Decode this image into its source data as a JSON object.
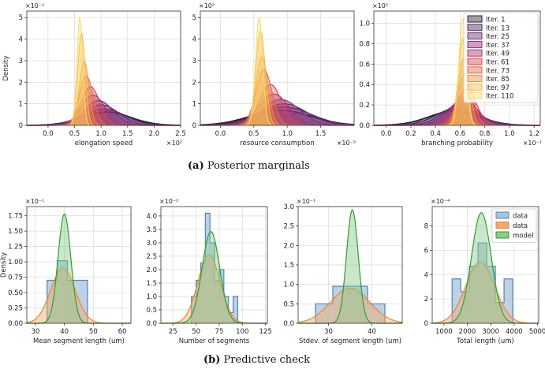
{
  "captions": {
    "a_tag": "(a)",
    "a_text": "Posterior marginals",
    "b_tag": "(b)",
    "b_text": "Predictive check"
  },
  "colors": {
    "iterations": [
      "#2b2338",
      "#4b2a5e",
      "#6d2e78",
      "#8e2d7d",
      "#b13370",
      "#cf4a5e",
      "#e4674c",
      "#f08f3f",
      "#f6b84b",
      "#f9dc6a"
    ],
    "data_fill": "#a9c2dd",
    "data_edge": "#4f86b8",
    "data2_fill": "#f4a86a",
    "data2_edge": "#f0822e",
    "model_fill": "#8cc98c",
    "model_edge": "#2ca02c",
    "grid": "#d9d9d9",
    "axis": "#333333"
  },
  "chart_data": [
    {
      "type": "area",
      "panel": "a1",
      "xlabel": "elongation speed",
      "ylabel": "Density",
      "xscale": "×10²",
      "yscale": "×10⁻²",
      "xlim": [
        -0.4,
        2.5
      ],
      "ylim": [
        0,
        5.3
      ],
      "xticks": [
        0.0,
        0.5,
        1.0,
        1.5,
        2.0,
        2.5
      ],
      "yticks": [
        0,
        1,
        2,
        3,
        4,
        5
      ],
      "grid": true,
      "series": [
        {
          "name": "Iter. 1",
          "mu": 1.1,
          "sd": 0.45,
          "peak": 0.62,
          "w": 1.9
        },
        {
          "name": "Iter. 13",
          "mu": 1.05,
          "sd": 0.4,
          "peak": 0.75,
          "w": 1.7
        },
        {
          "name": "Iter. 25",
          "mu": 1.0,
          "sd": 0.33,
          "peak": 0.95,
          "w": 1.5
        },
        {
          "name": "Iter. 37",
          "mu": 0.95,
          "sd": 0.27,
          "peak": 1.15,
          "w": 1.4
        },
        {
          "name": "Iter. 49",
          "mu": 0.85,
          "sd": 0.22,
          "peak": 1.4,
          "w": 1.3
        },
        {
          "name": "Iter. 61",
          "mu": 0.8,
          "sd": 0.17,
          "peak": 1.8,
          "w": 1.2
        },
        {
          "name": "Iter. 73",
          "mu": 0.72,
          "sd": 0.13,
          "peak": 2.3,
          "w": 1.1
        },
        {
          "name": "Iter. 85",
          "mu": 0.68,
          "sd": 0.09,
          "peak": 3.0,
          "w": 1.0
        },
        {
          "name": "Iter. 97",
          "mu": 0.63,
          "sd": 0.07,
          "peak": 4.3,
          "w": 1.0
        },
        {
          "name": "Iter. 110",
          "mu": 0.6,
          "sd": 0.055,
          "peak": 5.05,
          "w": 1.0
        }
      ]
    },
    {
      "type": "area",
      "panel": "a2",
      "xlabel": "resource consumption",
      "ylabel": "",
      "xscale": "×10⁻³",
      "yscale": "×10³",
      "xlim": [
        -0.3,
        2.0
      ],
      "ylim": [
        0,
        5.3
      ],
      "xticks": [
        0.0,
        0.5,
        1.0,
        1.5
      ],
      "yticks": [
        0,
        1,
        2,
        3,
        4,
        5
      ],
      "grid": true,
      "series": [
        {
          "name": "Iter. 1",
          "mu": 0.9,
          "sd": 0.45,
          "peak": 0.7,
          "w": 1.9
        },
        {
          "name": "Iter. 13",
          "mu": 0.95,
          "sd": 0.4,
          "peak": 0.85,
          "w": 1.6
        },
        {
          "name": "Iter. 25",
          "mu": 0.95,
          "sd": 0.34,
          "peak": 1.0,
          "w": 1.5
        },
        {
          "name": "Iter. 37",
          "mu": 0.9,
          "sd": 0.28,
          "peak": 1.2,
          "w": 1.3
        },
        {
          "name": "Iter. 49",
          "mu": 0.8,
          "sd": 0.22,
          "peak": 1.45,
          "w": 1.3
        },
        {
          "name": "Iter. 61",
          "mu": 0.75,
          "sd": 0.16,
          "peak": 1.9,
          "w": 1.2
        },
        {
          "name": "Iter. 73",
          "mu": 0.65,
          "sd": 0.12,
          "peak": 2.6,
          "w": 1.1
        },
        {
          "name": "Iter. 85",
          "mu": 0.62,
          "sd": 0.09,
          "peak": 3.2,
          "w": 1.0
        },
        {
          "name": "Iter. 97",
          "mu": 0.6,
          "sd": 0.07,
          "peak": 4.4,
          "w": 1.0
        },
        {
          "name": "Iter. 110",
          "mu": 0.58,
          "sd": 0.055,
          "peak": 5.0,
          "w": 1.0
        }
      ]
    },
    {
      "type": "area",
      "panel": "a3",
      "xlabel": "branching probability",
      "ylabel": "",
      "xscale": "×10⁻¹",
      "yscale": "×10²",
      "xlim": [
        -0.1,
        1.25
      ],
      "ylim": [
        0,
        1.12
      ],
      "xticks": [
        0.0,
        0.2,
        0.4,
        0.6,
        0.8,
        1.0,
        1.2
      ],
      "yticks": [
        0.0,
        0.2,
        0.4,
        0.6,
        0.8,
        1.0
      ],
      "grid": true,
      "legend": "top-right",
      "series": [
        {
          "name": "Iter. 1",
          "mu": 0.55,
          "sd": 0.2,
          "peak": 0.14,
          "w": 1.9
        },
        {
          "name": "Iter. 13",
          "mu": 0.58,
          "sd": 0.17,
          "peak": 0.17,
          "w": 1.6
        },
        {
          "name": "Iter. 25",
          "mu": 0.6,
          "sd": 0.14,
          "peak": 0.2,
          "w": 1.5
        },
        {
          "name": "Iter. 37",
          "mu": 0.62,
          "sd": 0.12,
          "peak": 0.24,
          "w": 1.3
        },
        {
          "name": "Iter. 49",
          "mu": 0.63,
          "sd": 0.1,
          "peak": 0.28,
          "w": 1.3
        },
        {
          "name": "Iter. 61",
          "mu": 0.65,
          "sd": 0.08,
          "peak": 0.36,
          "w": 1.2
        },
        {
          "name": "Iter. 73",
          "mu": 0.64,
          "sd": 0.06,
          "peak": 0.5,
          "w": 1.1
        },
        {
          "name": "Iter. 85",
          "mu": 0.63,
          "sd": 0.045,
          "peak": 0.66,
          "w": 1.0
        },
        {
          "name": "Iter. 97",
          "mu": 0.62,
          "sd": 0.035,
          "peak": 0.85,
          "w": 1.0
        },
        {
          "name": "Iter. 110",
          "mu": 0.62,
          "sd": 0.03,
          "peak": 1.05,
          "w": 1.0
        }
      ]
    },
    {
      "type": "bar",
      "panel": "b1",
      "xlabel": "Mean segment length (um)",
      "ylabel": "Density",
      "yscale": "×10⁻¹",
      "xlim": [
        27,
        63
      ],
      "ylim": [
        0,
        1.9
      ],
      "xticks": [
        30,
        40,
        50,
        60
      ],
      "yticks": [
        0.0,
        0.25,
        0.5,
        0.75,
        1.0,
        1.25,
        1.5,
        1.75
      ],
      "ytick_labels": [
        "0.00",
        "0.25",
        "0.50",
        "0.75",
        "1.00",
        "1.25",
        "1.50",
        "1.75"
      ],
      "grid": true,
      "hist": {
        "edges": [
          34,
          37.5,
          41,
          44.5,
          48
        ],
        "values": [
          0.7,
          1.02,
          0.7,
          0.7
        ]
      },
      "data_kde": {
        "mu": 39.5,
        "sd": 4.2,
        "peak": 0.9
      },
      "model_kde": {
        "mu": 40,
        "sd": 2.2,
        "peak": 1.78
      }
    },
    {
      "type": "bar",
      "panel": "b2",
      "xlabel": "Number of segments",
      "ylabel": "",
      "yscale": "×10⁻²",
      "xlim": [
        12,
        127
      ],
      "ylim": [
        0,
        4.35
      ],
      "xticks": [
        25,
        50,
        75,
        100,
        125
      ],
      "yticks": [
        0.0,
        0.5,
        1.0,
        1.5,
        2.0,
        2.5,
        3.0,
        3.5,
        4.0
      ],
      "ytick_labels": [
        "0.0",
        "0.5",
        "1.0",
        "1.5",
        "2.0",
        "2.5",
        "3.0",
        "3.5",
        "4.0"
      ],
      "grid": true,
      "hist": {
        "edges": [
          45,
          50,
          55,
          60,
          65,
          70,
          75,
          80,
          85,
          90,
          95
        ],
        "values": [
          1.0,
          1.6,
          2.25,
          4.1,
          3.0,
          1.6,
          2.0,
          1.0,
          0.4,
          1.0
        ]
      },
      "data_kde": {
        "mu": 64,
        "sd": 12,
        "peak": 2.55
      },
      "model_kde": {
        "mu": 66,
        "sd": 9.5,
        "peak": 3.42
      }
    },
    {
      "type": "bar",
      "panel": "b3",
      "xlabel": "Stdev. of segment length (um)",
      "ylabel": "",
      "yscale": "×10⁻¹",
      "xlim": [
        23,
        47
      ],
      "ylim": [
        0,
        3.0
      ],
      "xticks": [
        30,
        40
      ],
      "yticks": [
        0.0,
        0.5,
        1.0,
        1.5,
        2.0,
        2.5,
        3.0
      ],
      "ytick_labels": [
        "0.0",
        "0.5",
        "1.0",
        "1.5",
        "2.0",
        "2.5",
        "3.0"
      ],
      "grid": true,
      "hist": {
        "edges": [
          27,
          31,
          35,
          39,
          43
        ],
        "values": [
          0.5,
          0.95,
          0.95,
          0.5
        ]
      },
      "data_kde": {
        "mu": 35,
        "sd": 4.5,
        "peak": 0.9
      },
      "model_kde": {
        "mu": 35.5,
        "sd": 1.35,
        "peak": 2.92
      }
    },
    {
      "type": "bar",
      "panel": "b4",
      "xlabel": "Total length (um)",
      "ylabel": "",
      "yscale": "×10⁻⁴",
      "xlim": [
        500,
        5050
      ],
      "ylim": [
        0,
        9.6
      ],
      "xticks": [
        1000,
        2000,
        3000,
        4000,
        5000
      ],
      "yticks": [
        0,
        2,
        4,
        6,
        8
      ],
      "ytick_labels": [
        "0",
        "2",
        "4",
        "6",
        "8"
      ],
      "grid": true,
      "legend": "top-right",
      "legend_entries": [
        "data",
        "data",
        "model"
      ],
      "hist": {
        "edges": [
          1350,
          1720,
          2090,
          2460,
          2830,
          3200,
          3570,
          3940
        ],
        "values": [
          3.65,
          2.6,
          4.7,
          6.6,
          4.7,
          1.7,
          3.65
        ]
      },
      "data_kde": {
        "mu": 2550,
        "sd": 620,
        "peak": 5.05
      },
      "model_kde": {
        "mu": 2600,
        "sd": 420,
        "peak": 9.1
      }
    }
  ]
}
